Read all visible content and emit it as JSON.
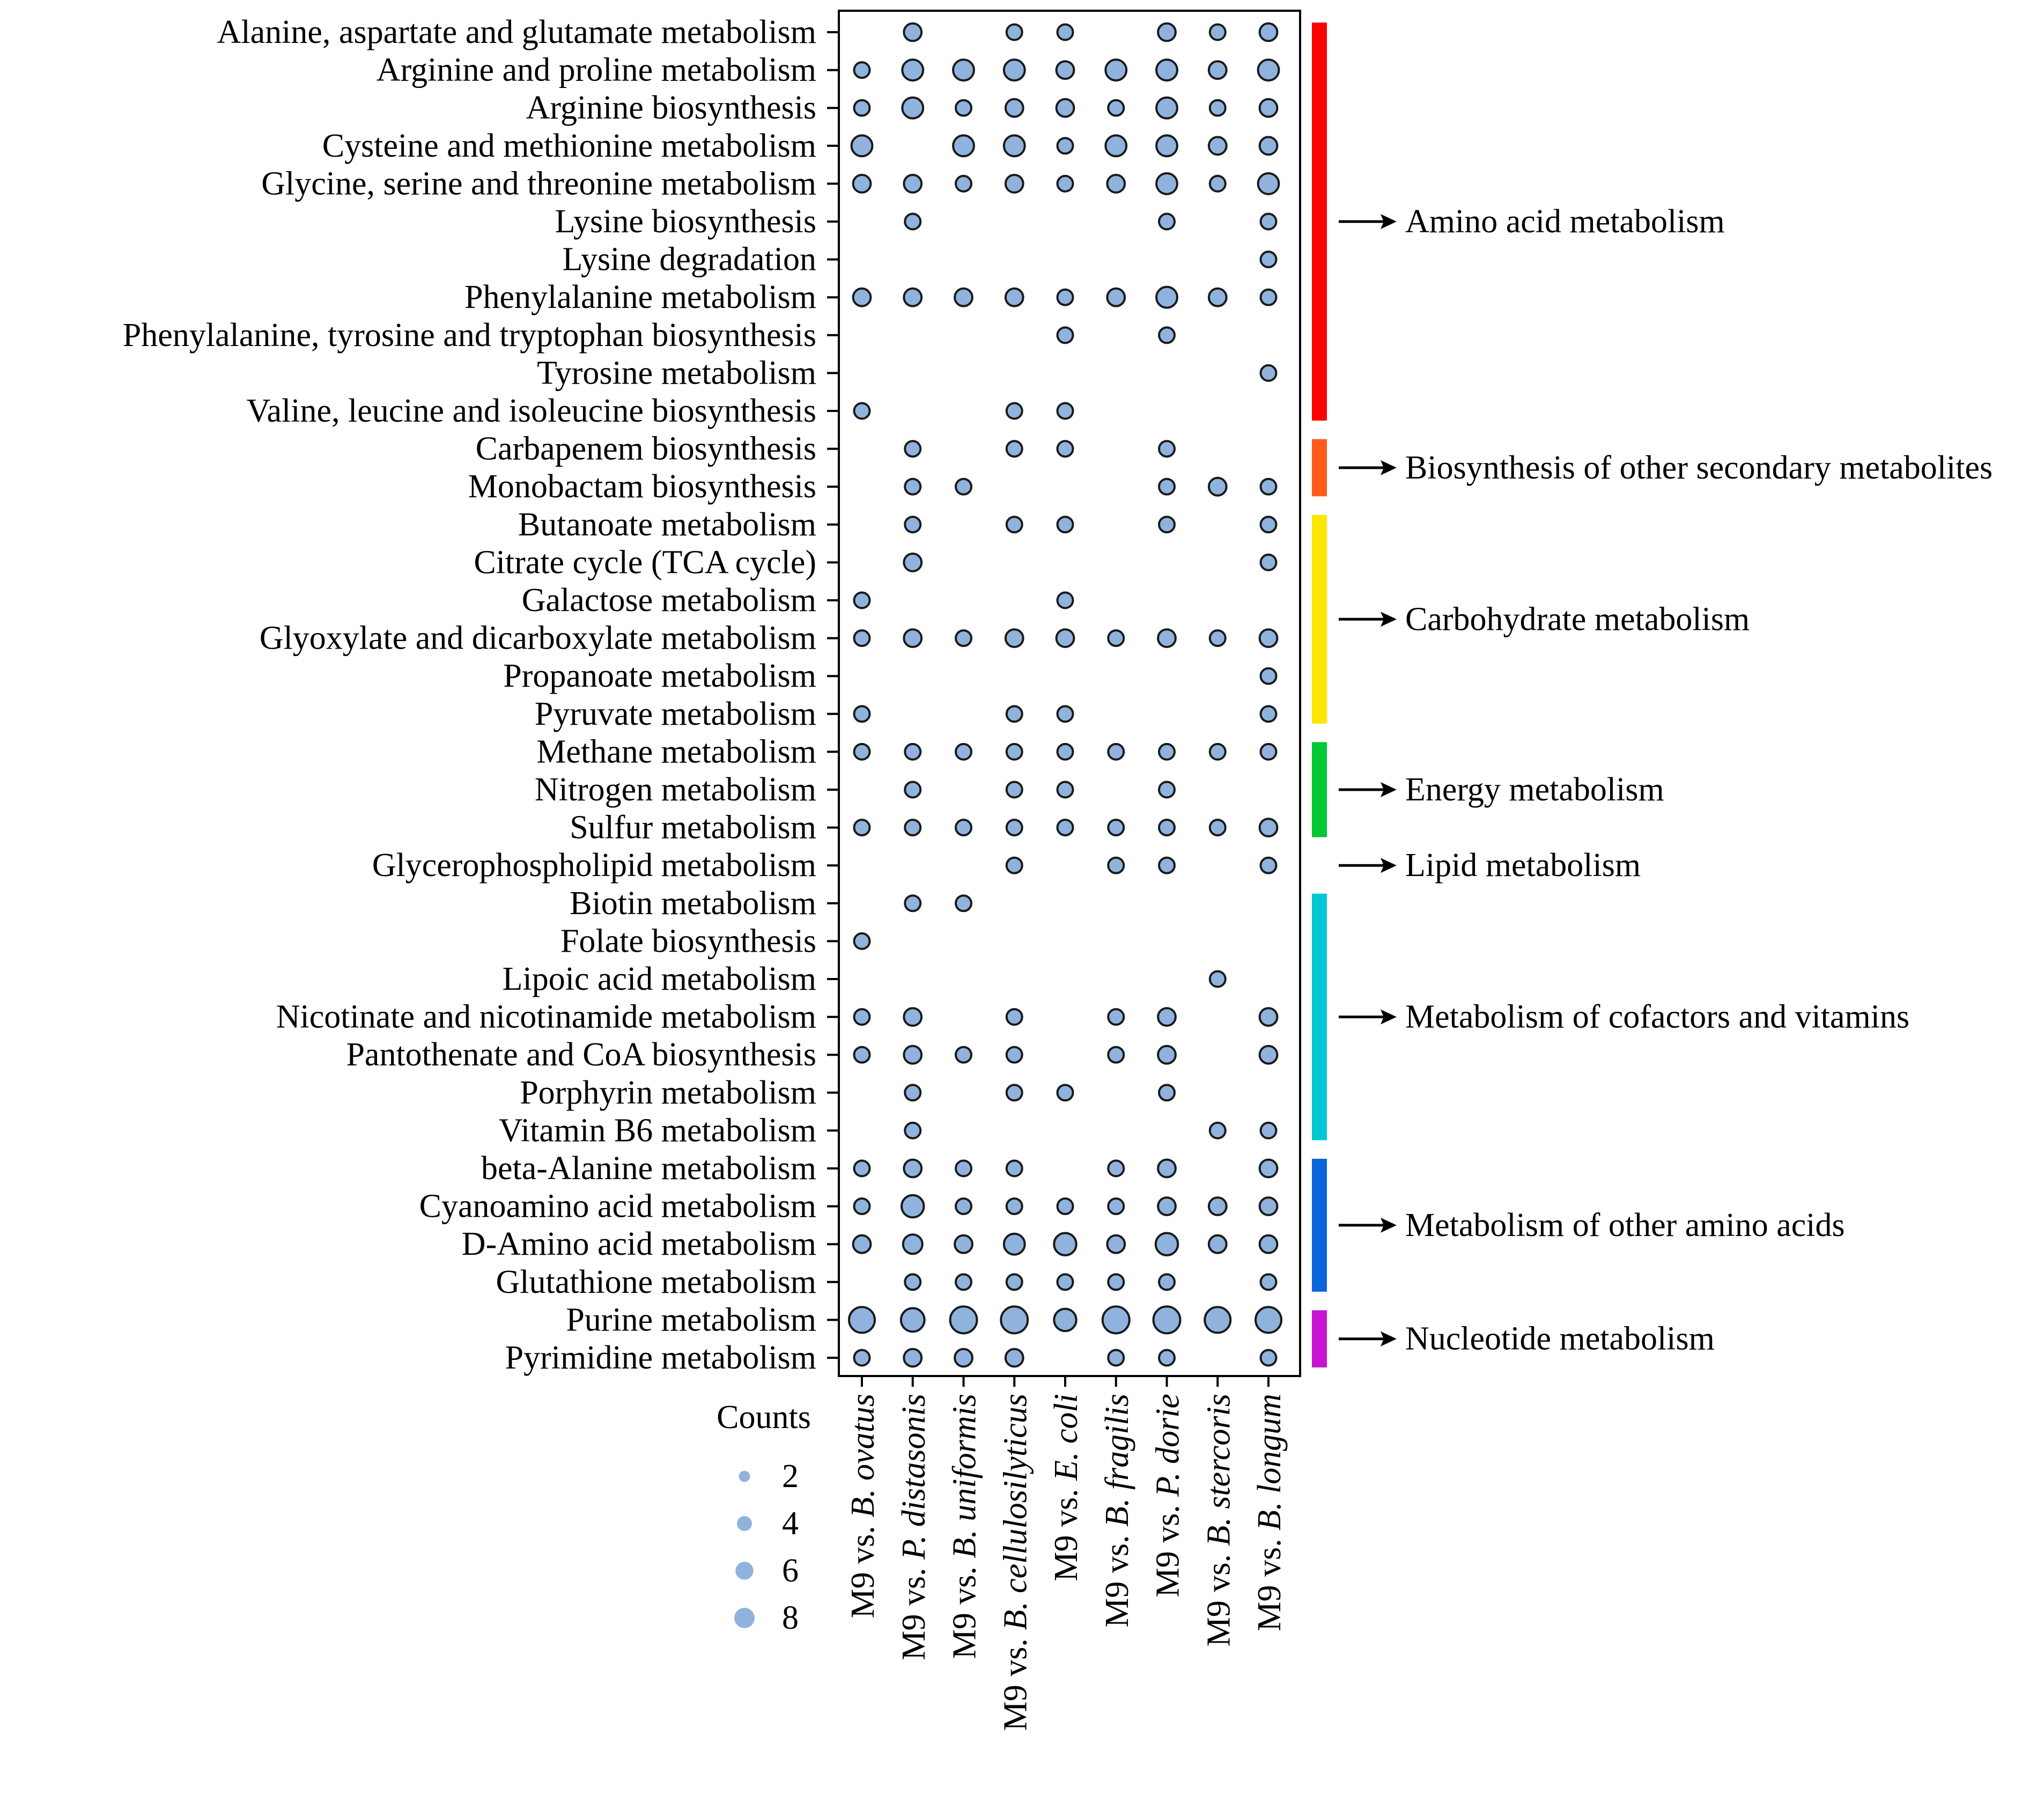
{
  "chart_data": {
    "type": "bubble",
    "legend_title": "Counts",
    "legend_values": [
      2,
      4,
      6,
      8
    ],
    "bubble_fill": "#8fb3dd",
    "bubble_stroke": "#1a1a1a",
    "columns": [
      {
        "prefix": "M9 vs. ",
        "species": "B. ovatus"
      },
      {
        "prefix": "M9 vs. ",
        "species": "P. distasonis"
      },
      {
        "prefix": "M9 vs. ",
        "species": "B. uniformis"
      },
      {
        "prefix": "M9 vs. ",
        "species": "B. cellulosilyticus"
      },
      {
        "prefix": "M9 vs. ",
        "species": "E. coli"
      },
      {
        "prefix": "M9 vs. ",
        "species": "B. fragilis"
      },
      {
        "prefix": "M9 vs. ",
        "species": "P. dorie"
      },
      {
        "prefix": "M9 vs. ",
        "species": "B. stercoris"
      },
      {
        "prefix": "M9 vs. ",
        "species": "B. longum"
      }
    ],
    "rows": [
      {
        "pathway": "Alanine, aspartate and glutamate metabolism",
        "counts": [
          0,
          3,
          0,
          2,
          2,
          0,
          3,
          2,
          3
        ]
      },
      {
        "pathway": "Arginine and proline metabolism",
        "counts": [
          2,
          5,
          5,
          5,
          3,
          5,
          5,
          3,
          5
        ]
      },
      {
        "pathway": "Arginine biosynthesis",
        "counts": [
          2,
          5,
          2,
          3,
          3,
          2,
          5,
          2,
          3
        ]
      },
      {
        "pathway": "Cysteine and methionine metabolism",
        "counts": [
          5,
          0,
          5,
          5,
          2,
          5,
          5,
          3,
          3
        ]
      },
      {
        "pathway": "Glycine, serine and threonine metabolism",
        "counts": [
          3,
          3,
          2,
          3,
          2,
          3,
          5,
          2,
          5
        ]
      },
      {
        "pathway": "Lysine biosynthesis",
        "counts": [
          0,
          2,
          0,
          0,
          0,
          0,
          2,
          0,
          2
        ]
      },
      {
        "pathway": "Lysine degradation",
        "counts": [
          0,
          0,
          0,
          0,
          0,
          0,
          0,
          0,
          2
        ]
      },
      {
        "pathway": "Phenylalanine metabolism",
        "counts": [
          3,
          3,
          3,
          3,
          2,
          3,
          5,
          3,
          2
        ]
      },
      {
        "pathway": "Phenylalanine, tyrosine and tryptophan biosynthesis",
        "counts": [
          0,
          0,
          0,
          0,
          2,
          0,
          2,
          0,
          0
        ]
      },
      {
        "pathway": "Tyrosine metabolism",
        "counts": [
          0,
          0,
          0,
          0,
          0,
          0,
          0,
          0,
          2
        ]
      },
      {
        "pathway": "Valine, leucine and isoleucine biosynthesis",
        "counts": [
          2,
          0,
          0,
          2,
          2,
          0,
          0,
          0,
          0
        ]
      },
      {
        "pathway": "Carbapenem biosynthesis",
        "counts": [
          0,
          2,
          0,
          2,
          2,
          0,
          2,
          0,
          0
        ]
      },
      {
        "pathway": "Monobactam biosynthesis",
        "counts": [
          0,
          2,
          2,
          0,
          0,
          0,
          2,
          3,
          2
        ]
      },
      {
        "pathway": "Butanoate metabolism",
        "counts": [
          0,
          2,
          0,
          2,
          2,
          0,
          2,
          0,
          2
        ]
      },
      {
        "pathway": "Citrate cycle (TCA cycle)",
        "counts": [
          0,
          3,
          0,
          0,
          0,
          0,
          0,
          0,
          2
        ]
      },
      {
        "pathway": "Galactose metabolism",
        "counts": [
          2,
          0,
          0,
          0,
          2,
          0,
          0,
          0,
          0
        ]
      },
      {
        "pathway": "Glyoxylate and dicarboxylate metabolism",
        "counts": [
          2,
          3,
          2,
          3,
          3,
          2,
          3,
          2,
          3
        ]
      },
      {
        "pathway": "Propanoate metabolism",
        "counts": [
          0,
          0,
          0,
          0,
          0,
          0,
          0,
          0,
          2
        ]
      },
      {
        "pathway": "Pyruvate metabolism",
        "counts": [
          2,
          0,
          0,
          2,
          2,
          0,
          0,
          0,
          2
        ]
      },
      {
        "pathway": "Methane metabolism",
        "counts": [
          2,
          2,
          2,
          2,
          2,
          2,
          2,
          2,
          2
        ]
      },
      {
        "pathway": "Nitrogen metabolism",
        "counts": [
          0,
          2,
          0,
          2,
          2,
          0,
          2,
          0,
          0
        ]
      },
      {
        "pathway": "Sulfur metabolism",
        "counts": [
          2,
          2,
          2,
          2,
          2,
          2,
          2,
          2,
          3
        ]
      },
      {
        "pathway": "Glycerophospholipid metabolism",
        "counts": [
          0,
          0,
          0,
          2,
          0,
          2,
          2,
          0,
          2
        ]
      },
      {
        "pathway": "Biotin metabolism",
        "counts": [
          0,
          2,
          2,
          0,
          0,
          0,
          0,
          0,
          0
        ]
      },
      {
        "pathway": "Folate biosynthesis",
        "counts": [
          2,
          0,
          0,
          0,
          0,
          0,
          0,
          0,
          0
        ]
      },
      {
        "pathway": "Lipoic acid metabolism",
        "counts": [
          0,
          0,
          0,
          0,
          0,
          0,
          0,
          2,
          0
        ]
      },
      {
        "pathway": "Nicotinate and nicotinamide metabolism",
        "counts": [
          2,
          3,
          0,
          2,
          0,
          2,
          3,
          0,
          3
        ]
      },
      {
        "pathway": "Pantothenate and CoA biosynthesis",
        "counts": [
          2,
          3,
          2,
          2,
          0,
          2,
          3,
          0,
          3
        ]
      },
      {
        "pathway": "Porphyrin metabolism",
        "counts": [
          0,
          2,
          0,
          2,
          2,
          0,
          2,
          0,
          0
        ]
      },
      {
        "pathway": "Vitamin B6 metabolism",
        "counts": [
          0,
          2,
          0,
          0,
          0,
          0,
          0,
          2,
          2
        ]
      },
      {
        "pathway": "beta-Alanine metabolism",
        "counts": [
          2,
          3,
          2,
          2,
          0,
          2,
          3,
          0,
          3
        ]
      },
      {
        "pathway": "Cyanoamino acid metabolism",
        "counts": [
          2,
          6,
          2,
          2,
          2,
          2,
          3,
          3,
          3
        ]
      },
      {
        "pathway": "D-Amino acid metabolism",
        "counts": [
          3,
          4,
          3,
          5,
          6,
          3,
          6,
          3,
          3
        ]
      },
      {
        "pathway": "Glutathione metabolism",
        "counts": [
          0,
          2,
          2,
          2,
          2,
          2,
          2,
          0,
          2
        ]
      },
      {
        "pathway": "Purine metabolism",
        "counts": [
          9,
          7,
          10,
          10,
          6,
          10,
          10,
          9,
          9
        ]
      },
      {
        "pathway": "Pyrimidine metabolism",
        "counts": [
          2,
          3,
          3,
          3,
          0,
          2,
          2,
          0,
          2
        ]
      }
    ],
    "groups": [
      {
        "label": "Amino acid metabolism",
        "color": "#ff0000",
        "first_row": 0,
        "last_row": 10,
        "bar": true
      },
      {
        "label": "Biosynthesis of other secondary metabolites",
        "color": "#ff5a1a",
        "first_row": 11,
        "last_row": 12,
        "bar": true
      },
      {
        "label": "Carbohydrate metabolism",
        "color": "#fae600",
        "first_row": 13,
        "last_row": 18,
        "bar": true
      },
      {
        "label": "Energy metabolism",
        "color": "#00c832",
        "first_row": 19,
        "last_row": 21,
        "bar": true
      },
      {
        "label": "Lipid metabolism",
        "color": "#ffffff",
        "first_row": 22,
        "last_row": 22,
        "bar": false
      },
      {
        "label": "Metabolism of cofactors and vitamins",
        "color": "#00c8d2",
        "first_row": 23,
        "last_row": 29,
        "bar": true
      },
      {
        "label": "Metabolism of other amino acids",
        "color": "#0a64dc",
        "first_row": 30,
        "last_row": 33,
        "bar": true
      },
      {
        "label": "Nucleotide metabolism",
        "color": "#c814d2",
        "first_row": 34,
        "last_row": 35,
        "bar": true
      }
    ]
  }
}
